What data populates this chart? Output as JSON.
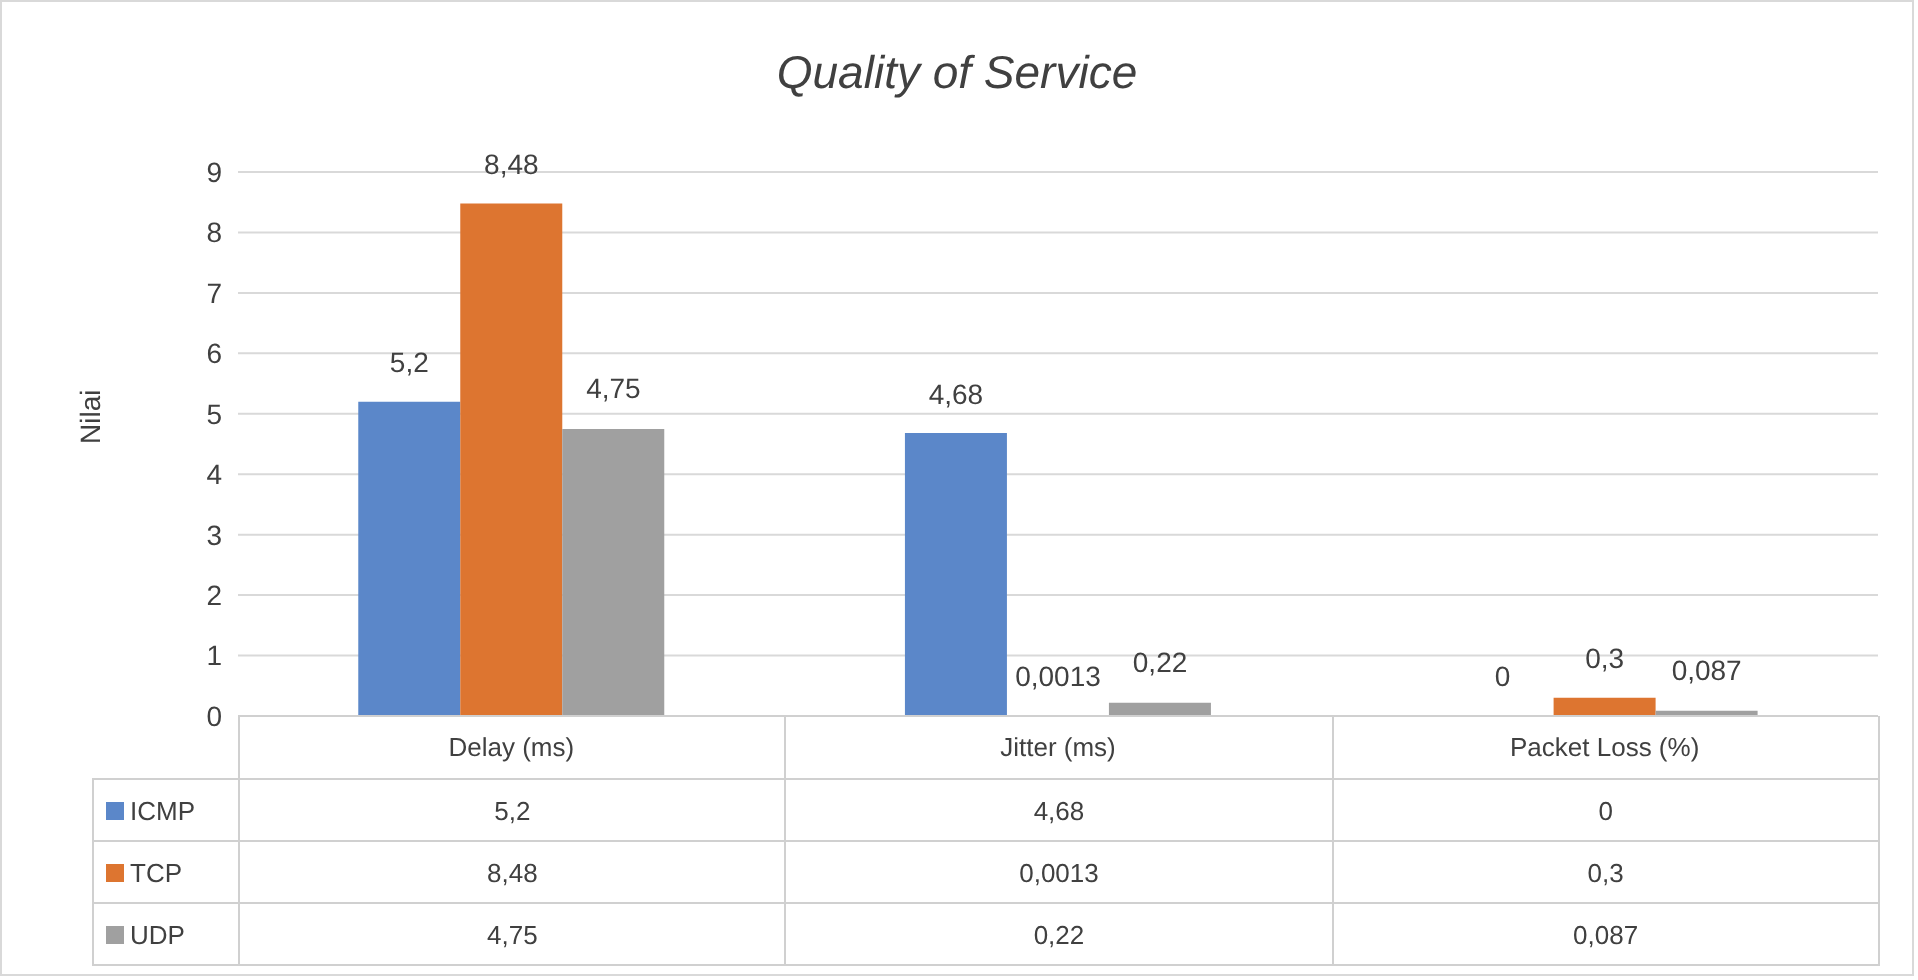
{
  "chart_data": {
    "type": "bar",
    "title": "Quality of Service",
    "ylabel": "Nilai",
    "categories": [
      "Delay (ms)",
      "Jitter (ms)",
      "Packet Loss (%)"
    ],
    "series": [
      {
        "name": "ICMP",
        "color": "#5b87c9",
        "values": [
          5.2,
          4.68,
          0
        ],
        "value_labels": [
          "5,2",
          "4,68",
          "0"
        ]
      },
      {
        "name": "TCP",
        "color": "#dd7530",
        "values": [
          8.48,
          0.0013,
          0.3
        ],
        "value_labels": [
          "8,48",
          "0,0013",
          "0,3"
        ]
      },
      {
        "name": "UDP",
        "color": "#a0a0a0",
        "values": [
          4.75,
          0.22,
          0.087
        ],
        "value_labels": [
          "4,75",
          "0,22",
          "0,087"
        ]
      }
    ],
    "ylim": [
      0,
      9
    ],
    "yticks": [
      0,
      1,
      2,
      3,
      4,
      5,
      6,
      7,
      8,
      9
    ],
    "grid": "y",
    "legend": "bottom"
  }
}
